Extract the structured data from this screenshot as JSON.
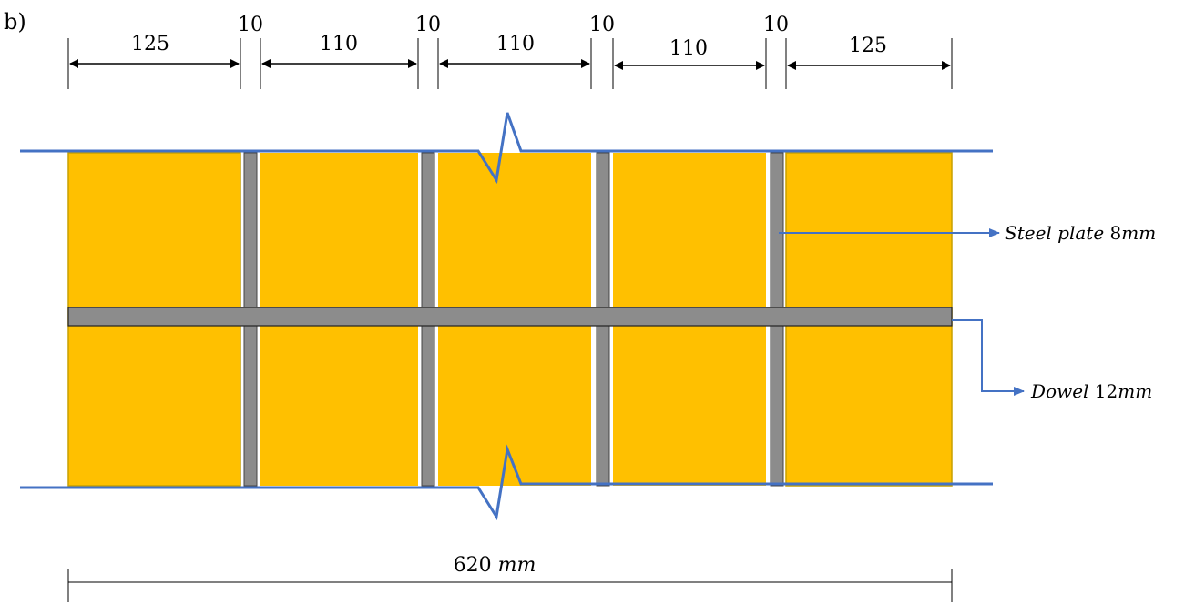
{
  "panel_label": "b)",
  "segments": [
    {
      "text": "125"
    },
    {
      "text": "110"
    },
    {
      "text": "110"
    },
    {
      "text": "110"
    },
    {
      "text": "125"
    }
  ],
  "gap_label": "10",
  "total": {
    "value": "620",
    "unit": "mm"
  },
  "callouts": {
    "steel_plate": {
      "name": "Steel plate",
      "size": "8",
      "unit": "mm"
    },
    "dowel": {
      "name": "Dowel",
      "size": "12",
      "unit": "mm"
    }
  },
  "colors": {
    "timber": "#FFC000",
    "timber_edge": "#C8A000",
    "steel": "#8C8C8C",
    "boundary": "#4472C4",
    "dimension": "#000000"
  }
}
